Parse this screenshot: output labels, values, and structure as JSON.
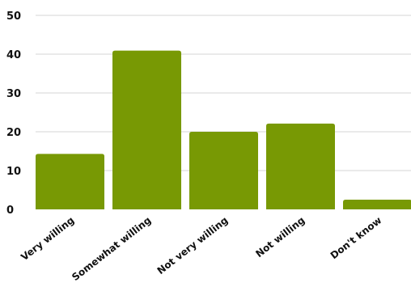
{
  "chart_data": {
    "type": "bar",
    "categories": [
      "Very willing",
      "Somewhat willing",
      "Not very willing",
      "Not willing",
      "Don't know"
    ],
    "values": [
      14.3,
      40.9,
      20.0,
      22.1,
      2.5
    ],
    "yticks": [
      "0",
      "10",
      "20",
      "30",
      "40",
      "50"
    ],
    "ylim": [
      0,
      50
    ],
    "grid": true,
    "bar_color": "#789904"
  }
}
